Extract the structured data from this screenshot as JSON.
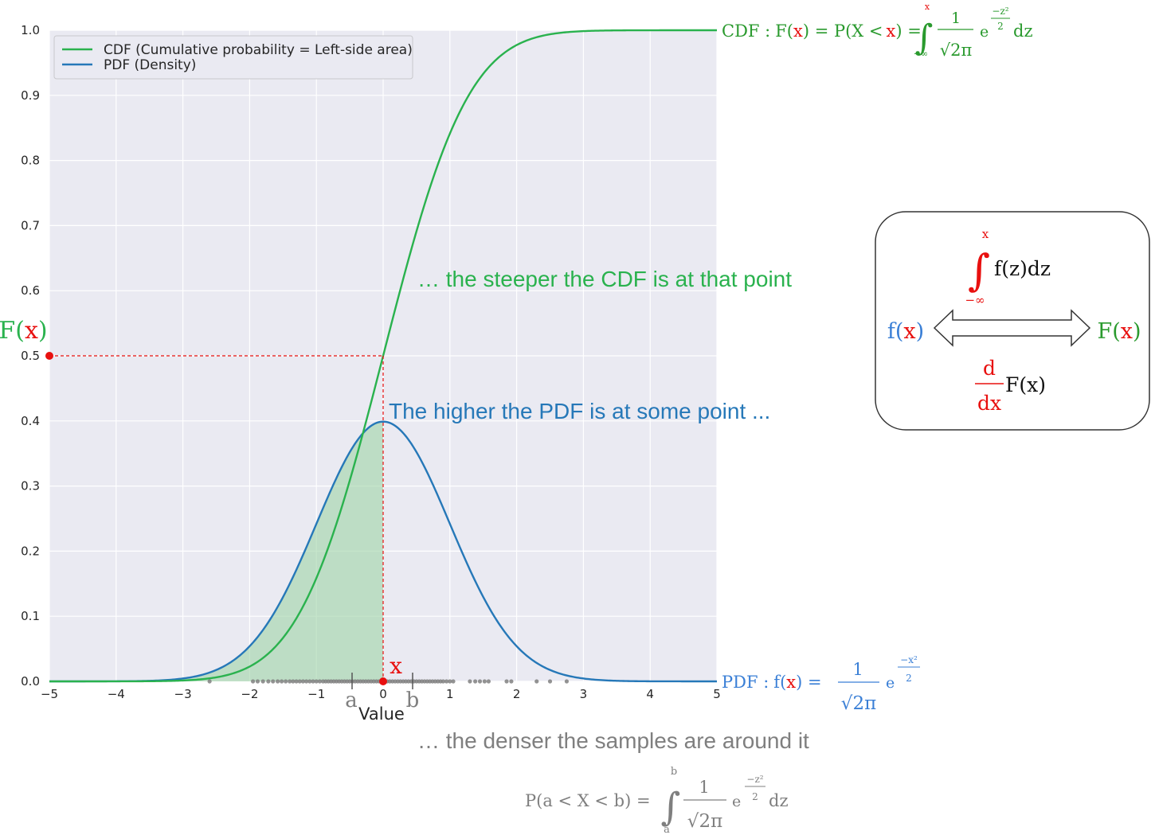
{
  "chart_data": {
    "type": "line",
    "xlabel": "Value",
    "ylabel": "",
    "xlim": [
      -5,
      5
    ],
    "ylim": [
      0,
      1
    ],
    "x_ticks": [
      "−5",
      "−4",
      "−3",
      "−2",
      "−1",
      "0",
      "1",
      "2",
      "3",
      "4",
      "5"
    ],
    "y_ticks": [
      "0.0",
      "0.1",
      "0.2",
      "0.3",
      "0.4",
      "0.5",
      "0.6",
      "0.7",
      "0.8",
      "0.9",
      "1.0"
    ],
    "grid": true,
    "legend_position": "top-left",
    "series": [
      {
        "name": "CDF (Cumulative probability = Left-side area)",
        "color": "#2ab24e",
        "function": "normal_cdf"
      },
      {
        "name": "PDF (Density)",
        "color": "#2678b8",
        "function": "normal_pdf"
      }
    ],
    "shaded_area": {
      "from": -5,
      "to": 0,
      "under": "PDF (Density)",
      "color": "#9fd3a6"
    },
    "marked_point": {
      "x": 0,
      "F_x": 0.5
    },
    "samples": [
      -2.6,
      -1.95,
      -1.88,
      -1.8,
      -1.72,
      -1.65,
      -1.58,
      -1.52,
      -1.46,
      -1.4,
      -1.35,
      -1.3,
      -1.25,
      -1.2,
      -1.15,
      -1.1,
      -1.05,
      -1.0,
      -0.95,
      -0.9,
      -0.86,
      -0.82,
      -0.78,
      -0.74,
      -0.7,
      -0.66,
      -0.62,
      -0.58,
      -0.54,
      -0.5,
      -0.46,
      -0.42,
      -0.38,
      -0.34,
      -0.3,
      -0.26,
      -0.22,
      -0.18,
      -0.14,
      -0.1,
      -0.06,
      -0.02,
      0.02,
      0.06,
      0.1,
      0.14,
      0.18,
      0.22,
      0.26,
      0.3,
      0.34,
      0.38,
      0.42,
      0.46,
      0.5,
      0.54,
      0.58,
      0.62,
      0.66,
      0.7,
      0.74,
      0.78,
      0.82,
      0.86,
      0.9,
      0.95,
      1.0,
      1.05,
      1.3,
      1.38,
      1.45,
      1.52,
      1.58,
      1.85,
      1.92,
      2.3,
      2.5,
      2.75
    ],
    "interval_labels": {
      "a": "a",
      "b": "b",
      "a_value": -0.45,
      "b_value": 0.45
    }
  },
  "annotations": {
    "point_label": "x",
    "fx_label": {
      "F": "F(",
      "x": "x",
      "close": ")"
    },
    "steeper_text": "… the steeper the CDF is at that point",
    "higher_text": "The higher the PDF is at some point ...",
    "denser_text": "… the denser the samples are around it"
  },
  "formulas": {
    "cdf": {
      "prefix": "CDF :",
      "lhs": "F(",
      "x": "x",
      "mid": ") = P(X <",
      "x2": "x",
      "end": ") =",
      "upper": "x",
      "lower": "−∞",
      "num": "1",
      "den": "√2π",
      "e": "e",
      "exp_num": "−z²",
      "exp_den": "2",
      "dz": "dz"
    },
    "pdf": {
      "prefix": "PDF :",
      "lhs": "f(",
      "x": "x",
      "end": ") =",
      "num": "1",
      "den": "√2π",
      "e": "e",
      "exp_num": "−x²",
      "exp_den": "2"
    },
    "interval": {
      "lhs": "P(a < X < b) =",
      "upper": "b",
      "lower": "a",
      "num": "1",
      "den": "√2π",
      "e": "e",
      "exp_num": "−z²",
      "exp_den": "2",
      "dz": "dz"
    }
  },
  "relation_box": {
    "left": {
      "f": "f(",
      "x": "x",
      "close": ")"
    },
    "right": {
      "F": "F(",
      "x": "x",
      "close": ")"
    },
    "integral": {
      "upper": "x",
      "lower": "−∞",
      "body": "f(z)dz"
    },
    "derivative": {
      "num": "d",
      "den": "dx",
      "body": "F(x)"
    }
  },
  "colors": {
    "cdf": "#2ab24e",
    "pdf": "#2678b8",
    "red": "#e8100f",
    "gray": "#7f7f7f",
    "plot_bg": "#eaeaf2"
  }
}
